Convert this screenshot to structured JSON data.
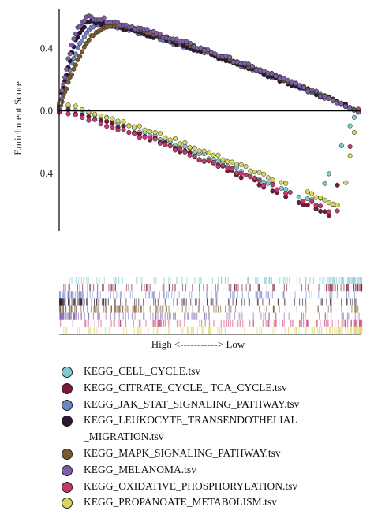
{
  "chart_data": {
    "type": "scatter",
    "title": "",
    "xlabel": "",
    "ylabel": "Enrichment Score",
    "yticks": [
      0.4,
      0.0,
      -0.4
    ],
    "ytick_labels": [
      "0.4",
      "0.0",
      "−0.4"
    ],
    "ylim": [
      -0.77,
      0.65
    ],
    "xlim": [
      0,
      1
    ],
    "grid": false,
    "legend_position": "bottom",
    "rank_label": "High <-----------> Low",
    "series": [
      {
        "name": "KEGG_CELL_CYCLE.tsv",
        "color": "#7ec8cf",
        "shape": "negative",
        "min": -0.6,
        "min_x": 0.86,
        "end_x": 0.99,
        "start": 0.04,
        "scatter": 0.012
      },
      {
        "name": "KEGG_CITRATE_CYCLE_ TCA_CYCLE.tsv",
        "color": "#7a1838",
        "shape": "negative",
        "min": -0.67,
        "min_x": 0.9,
        "end_x": 0.99,
        "start": 0.02,
        "scatter": 0.014
      },
      {
        "name": "KEGG_JAK_STAT_SIGNALING_PATHWAY.tsv",
        "color": "#6f86c4",
        "shape": "positive",
        "peak": 0.55,
        "peak_x": 0.14,
        "end_x": 0.99,
        "scatter": 0.01
      },
      {
        "name": "KEGG_LEUKOCYTE_TRANSENDOTHELIAL _MIGRATION.tsv",
        "color": "#2b1633",
        "shape": "positive",
        "peak": 0.57,
        "peak_x": 0.11,
        "end_x": 0.99,
        "scatter": 0.012
      },
      {
        "name": "KEGG_MAPK_SIGNALING_PATHWAY.tsv",
        "color": "#7a5a2e",
        "shape": "positive",
        "peak": 0.55,
        "peak_x": 0.18,
        "end_x": 0.99,
        "scatter": 0.01
      },
      {
        "name": "KEGG_MELANOMA.tsv",
        "color": "#7b5fa8",
        "shape": "positive",
        "peak": 0.6,
        "peak_x": 0.1,
        "end_x": 0.99,
        "scatter": 0.012
      },
      {
        "name": "KEGG_OXIDATIVE_PHOSPHORYLATION.tsv",
        "color": "#c4396f",
        "shape": "negative",
        "min": -0.66,
        "min_x": 0.92,
        "end_x": 0.99,
        "start": 0.0,
        "scatter": 0.014
      },
      {
        "name": "KEGG_PROPANOATE_METABOLISM.tsv",
        "color": "#d8d65a",
        "shape": "negative",
        "min": -0.62,
        "min_x": 0.94,
        "end_x": 0.99,
        "start": 0.05,
        "scatter": 0.012
      }
    ]
  }
}
